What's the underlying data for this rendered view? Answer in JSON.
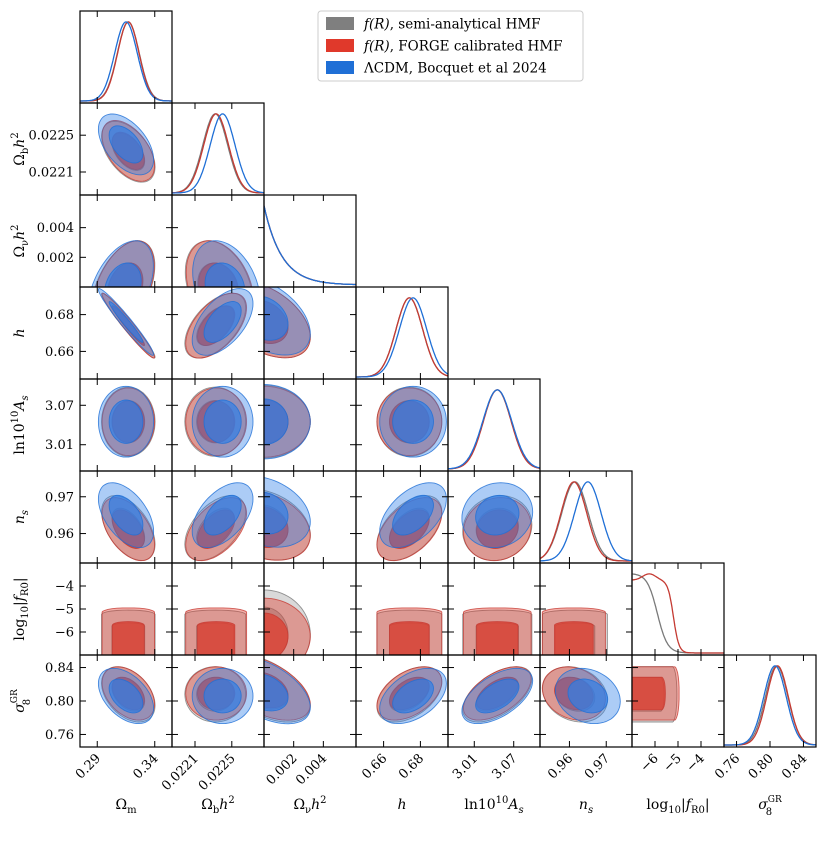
{
  "chart_data": {
    "type": "corner",
    "parameters": [
      {
        "key": "Om",
        "label": "Ωm",
        "label_main": "Ω",
        "label_sub": "m",
        "range": [
          0.275,
          0.355
        ],
        "ticks": [
          0.29,
          0.34
        ],
        "tick_labels": [
          "0.29",
          "0.34"
        ]
      },
      {
        "key": "Obh2",
        "label": "Ωbh²",
        "label_main": "Ω",
        "label_sub": "b",
        "label_post": "h",
        "label_sup": "2",
        "range": [
          0.02185,
          0.02285
        ],
        "ticks": [
          0.0221,
          0.0225
        ],
        "tick_labels": [
          "0.0221",
          "0.0225"
        ]
      },
      {
        "key": "Onuh2",
        "label": "Ωνh²",
        "label_main": "Ω",
        "label_sub": "ν",
        "label_post": "h",
        "label_sup": "2",
        "range": [
          0.0,
          0.0062
        ],
        "ticks": [
          0.002,
          0.004
        ],
        "tick_labels": [
          "0.002",
          "0.004"
        ]
      },
      {
        "key": "h",
        "label": "h",
        "label_main": "h",
        "range": [
          0.645,
          0.695
        ],
        "ticks": [
          0.66,
          0.68
        ],
        "tick_labels": [
          "0.66",
          "0.68"
        ]
      },
      {
        "key": "lnAs",
        "label": "ln10¹⁰As",
        "label_main": "ln10",
        "label_sup": "10",
        "label_post": "A",
        "label_sub": "s",
        "range": [
          2.97,
          3.11
        ],
        "ticks": [
          3.01,
          3.07
        ],
        "tick_labels": [
          "3.01",
          "3.07"
        ]
      },
      {
        "key": "ns",
        "label": "ns",
        "label_main": "n",
        "label_sub": "s",
        "range": [
          0.952,
          0.977
        ],
        "ticks": [
          0.96,
          0.97
        ],
        "tick_labels": [
          "0.96",
          "0.97"
        ]
      },
      {
        "key": "logfR0",
        "label": "log10|fR0|",
        "label_main": "log",
        "label_sub": "10",
        "label_post": "|f",
        "label_sub2": "R0",
        "label_end": "|",
        "range": [
          -7.0,
          -3.0
        ],
        "ticks": [
          -6,
          -5,
          -4
        ],
        "tick_labels": [
          "−6",
          "−5",
          "−4"
        ]
      },
      {
        "key": "s8",
        "label": "σ8GR",
        "label_main": "σ",
        "label_sub": "8",
        "label_sup": "GR",
        "range": [
          0.745,
          0.855
        ],
        "ticks": [
          0.76,
          0.8,
          0.84
        ],
        "tick_labels": [
          "0.76",
          "0.80",
          "0.84"
        ]
      }
    ],
    "series": [
      {
        "name": "f(R), semi-analytical HMF",
        "legend_main": "f(R)",
        "legend_rest": ", semi-analytical HMF",
        "color": "#7a7a7a",
        "fill": "#a0a0a0",
        "params": [
          "Om",
          "Obh2",
          "Onuh2",
          "h",
          "lnAs",
          "ns",
          "logfR0",
          "s8"
        ],
        "mean": {
          "Om": 0.317,
          "Obh2": 0.02232,
          "h": 0.674,
          "lnAs": 3.045,
          "ns": 0.9615,
          "logfR0": -6.1,
          "s8": 0.808
        },
        "sigma": {
          "Om": 0.0095,
          "Obh2": 0.000135,
          "h": 0.0072,
          "lnAs": 0.0215,
          "ns": 0.0036,
          "logfR0": 0.75,
          "s8": 0.0135
        },
        "onu_scale": 0.0012,
        "corr": {
          "Om-Obh2": -0.5,
          "Om-Onuh2": 0.6,
          "Om-h": -0.97,
          "Om-lnAs": 0.0,
          "Om-ns": -0.5,
          "Om-s8": -0.4,
          "Obh2-Onuh2": -0.4,
          "Obh2-h": 0.55,
          "Obh2-ns": 0.5,
          "Onuh2-h": -0.6,
          "Onuh2-ns": -0.35,
          "Onuh2-s8": -0.7,
          "h-ns": 0.5,
          "h-s8": 0.45,
          "lnAs-ns": 0.1,
          "lnAs-s8": 0.55,
          "ns-s8": -0.2
        }
      },
      {
        "name": "f(R), FORGE calibrated HMF",
        "legend_main": "f(R)",
        "legend_rest": ", FORGE calibrated HMF",
        "color": "#c53a32",
        "fill": "#e0392b",
        "params": [
          "Om",
          "Obh2",
          "Onuh2",
          "h",
          "lnAs",
          "ns",
          "logfR0",
          "s8"
        ],
        "mean": {
          "Om": 0.317,
          "Obh2": 0.02233,
          "h": 0.674,
          "lnAs": 3.045,
          "ns": 0.9612,
          "logfR0": -6.2,
          "s8": 0.809
        },
        "sigma": {
          "Om": 0.0093,
          "Obh2": 0.000135,
          "h": 0.0072,
          "lnAs": 0.021,
          "ns": 0.0035,
          "logfR0": 0.65,
          "s8": 0.013
        },
        "onu_scale": 0.0012,
        "corr": {
          "Om-Obh2": -0.5,
          "Om-Onuh2": 0.6,
          "Om-h": -0.97,
          "Om-lnAs": 0.0,
          "Om-ns": -0.5,
          "Om-s8": -0.4,
          "Obh2-Onuh2": -0.4,
          "Obh2-h": 0.55,
          "Obh2-ns": 0.5,
          "Onuh2-h": -0.6,
          "Onuh2-ns": -0.35,
          "Onuh2-s8": -0.7,
          "h-ns": 0.5,
          "h-s8": 0.45,
          "lnAs-ns": 0.1,
          "lnAs-s8": 0.55,
          "ns-s8": -0.2
        }
      },
      {
        "name": "ΛCDM, Bocquet et al 2024",
        "legend_main": "ΛCDM",
        "legend_rest": ", Bocquet et al 2024",
        "color": "#1f6fd6",
        "fill": "#2f7fe8",
        "params": [
          "Om",
          "Obh2",
          "Onuh2",
          "h",
          "lnAs",
          "ns",
          "s8"
        ],
        "mean": {
          "Om": 0.315,
          "Obh2": 0.0224,
          "h": 0.676,
          "lnAs": 3.045,
          "ns": 0.965,
          "s8": 0.806
        },
        "sigma": {
          "Om": 0.0098,
          "Obh2": 0.000135,
          "h": 0.0074,
          "lnAs": 0.022,
          "ns": 0.0036,
          "s8": 0.0135
        },
        "onu_scale": 0.0012,
        "corr": {
          "Om-Obh2": -0.5,
          "Om-Onuh2": 0.6,
          "Om-h": -0.97,
          "Om-lnAs": 0.0,
          "Om-ns": -0.5,
          "Om-s8": -0.45,
          "Obh2-Onuh2": -0.4,
          "Obh2-h": 0.55,
          "Obh2-ns": 0.5,
          "Onuh2-h": -0.6,
          "Onuh2-ns": -0.35,
          "Onuh2-s8": -0.7,
          "h-ns": 0.5,
          "h-s8": 0.45,
          "lnAs-ns": 0.1,
          "lnAs-s8": 0.55,
          "ns-s8": -0.2
        }
      }
    ],
    "contour_levels": [
      "68%",
      "95%"
    ],
    "legend_position": "top-right"
  }
}
